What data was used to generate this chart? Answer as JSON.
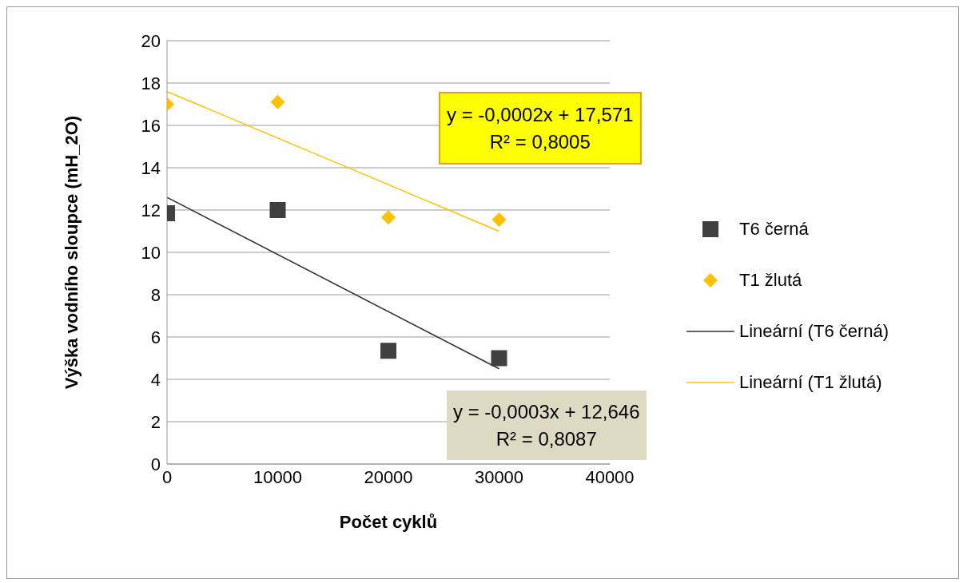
{
  "chart_data": {
    "type": "scatter",
    "xlabel": "Počet cyklů",
    "ylabel": "Výška vodního sloupce (mH_2O)",
    "xlim": [
      0,
      40000
    ],
    "xticks": [
      0,
      10000,
      20000,
      30000,
      40000
    ],
    "ylim": [
      0,
      20
    ],
    "yticks": [
      0,
      2,
      4,
      6,
      8,
      10,
      12,
      14,
      16,
      18,
      20
    ],
    "grid": "y",
    "legend": "right",
    "series": [
      {
        "name": "T6 černá",
        "color": "#404040",
        "marker": "square",
        "x": [
          0,
          10000,
          20000,
          30000
        ],
        "values": [
          11.85,
          12.0,
          5.35,
          5.0
        ]
      },
      {
        "name": "T1 žlutá",
        "color": "#ffc000",
        "marker": "diamond",
        "x": [
          0,
          10000,
          20000,
          30000
        ],
        "values": [
          17.0,
          17.1,
          11.65,
          11.55
        ]
      },
      {
        "name": "Lineární (T6 černá)",
        "color": "#303030",
        "type": "line",
        "marker": "none",
        "x": [
          0,
          30000
        ],
        "values": [
          12.6,
          4.5
        ]
      },
      {
        "name": "Lineární (T1 žlutá)",
        "color": "#ffc000",
        "type": "line",
        "marker": "none",
        "x": [
          0,
          30000
        ],
        "values": [
          17.6,
          11.0
        ]
      }
    ],
    "annotations": [
      "y = -0,0002x + 17,571\nR² = 0,8005",
      "y = -0,0003x + 12,646\nR² = 0,8087"
    ]
  }
}
